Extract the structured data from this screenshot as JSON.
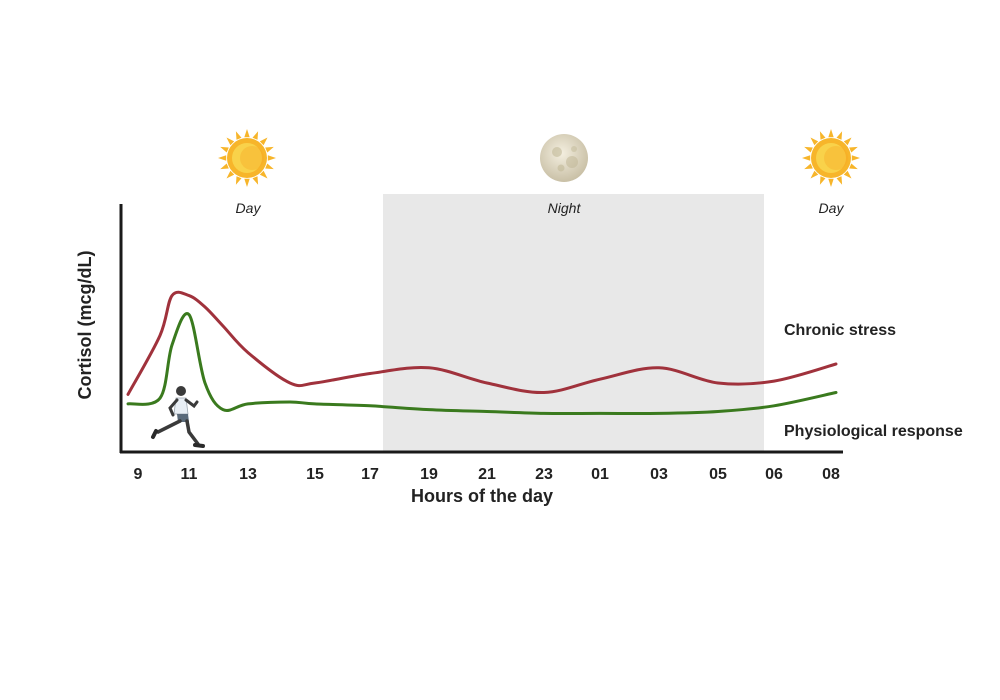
{
  "chart_data": {
    "type": "line",
    "xlabel": "Hours of the day",
    "ylabel": "Cortisol (mcg/dL)",
    "x_ticks": [
      "9",
      "11",
      "13",
      "15",
      "17",
      "19",
      "21",
      "23",
      "01",
      "03",
      "05",
      "06",
      "08"
    ],
    "x": [
      "9",
      "10",
      "10.5",
      "11",
      "11.5",
      "12",
      "13",
      "14",
      "15",
      "17",
      "19",
      "21",
      "23",
      "01",
      "03",
      "05",
      "06",
      "08"
    ],
    "y_ticks_shown": false,
    "grid": false,
    "shaded_regions": [
      {
        "label": "Night",
        "from": "17.5",
        "to": "06",
        "color": "#e8e8e8"
      }
    ],
    "period_labels": [
      {
        "label": "Day",
        "icon": "sun-icon",
        "at": "11"
      },
      {
        "label": "Night",
        "icon": "moon-icon",
        "at": "23"
      },
      {
        "label": "Day",
        "icon": "sun-icon",
        "at": "08"
      }
    ],
    "series": [
      {
        "name": "Chronic stress",
        "color": "#a0323c",
        "values": [
          0.24,
          0.55,
          0.76,
          0.76,
          0.7,
          0.6,
          0.46,
          0.3,
          0.3,
          0.35,
          0.38,
          0.3,
          0.25,
          0.32,
          0.38,
          0.3,
          0.31,
          0.4
        ]
      },
      {
        "name": "Physiological response",
        "color": "#3a7a1e",
        "values": [
          0.19,
          0.22,
          0.5,
          0.66,
          0.3,
          0.16,
          0.19,
          0.2,
          0.19,
          0.18,
          0.16,
          0.15,
          0.14,
          0.14,
          0.14,
          0.15,
          0.18,
          0.25
        ]
      }
    ],
    "decoration": "runner-icon"
  }
}
